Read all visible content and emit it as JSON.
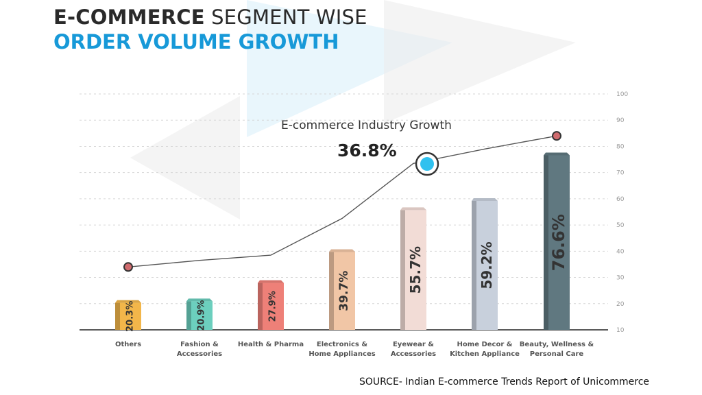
{
  "header": {
    "title_bold": "E-COMMERCE",
    "title_rest": "SEGMENT WISE",
    "subtitle": "ORDER VOLUME GROWTH"
  },
  "source": "SOURCE- Indian E-commerce Trends Report of Unicommerce",
  "chart_data": {
    "type": "bar",
    "categories": [
      [
        "Others"
      ],
      [
        "Fashion &",
        "Accessories"
      ],
      [
        "Health & Pharma"
      ],
      [
        "Electronics &",
        "Home Appliances"
      ],
      [
        "Eyewear &",
        "Accessories"
      ],
      [
        "Home Decor &",
        "Kitchen Appliance"
      ],
      [
        "Beauty, Wellness &",
        "Personal Care"
      ]
    ],
    "values": [
      20.3,
      20.9,
      27.9,
      39.7,
      55.7,
      59.2,
      76.6
    ],
    "value_labels": [
      "20.3%",
      "20.9%",
      "27.9%",
      "39.7%",
      "55.7%",
      "59.2%",
      "76.6%"
    ],
    "bar_colors": [
      "#f2b64a",
      "#6ccfbe",
      "#ee8078",
      "#f1c6a6",
      "#f2dcd6",
      "#c8d0dc",
      "#607880"
    ],
    "trend_line": {
      "values": [
        34,
        36.5,
        38.5,
        52.5,
        73.5,
        79,
        84
      ]
    },
    "annotation": {
      "text": "E-commerce Industry Growth",
      "value": "36.8%",
      "point_color": "#2fc1ef"
    },
    "ylim": [
      10,
      100
    ],
    "yticks": [
      10,
      20,
      30,
      40,
      50,
      60,
      70,
      80,
      90,
      100
    ],
    "grid": true
  }
}
